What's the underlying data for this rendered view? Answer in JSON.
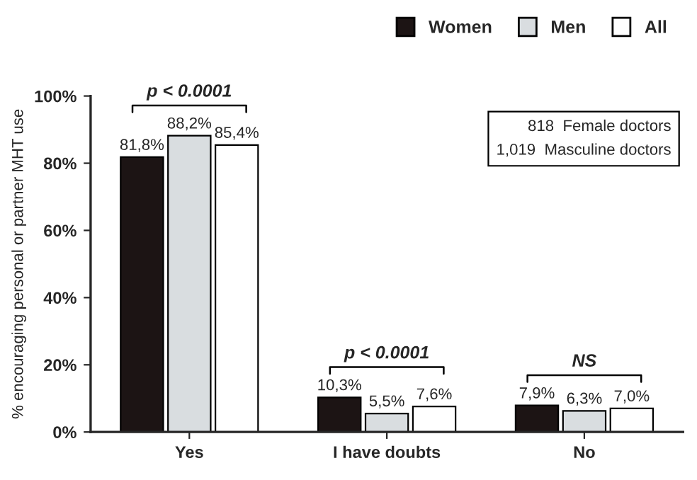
{
  "chart_data": {
    "type": "bar",
    "ylabel": "% encouraging personal or partner MHT use",
    "categories": [
      "Yes",
      "I have doubts",
      "No"
    ],
    "series": [
      {
        "name": "Women",
        "color": "#1c1414",
        "values": [
          81.8,
          10.3,
          7.9
        ],
        "value_labels": [
          "81,8%",
          "10,3%",
          "7,9%"
        ]
      },
      {
        "name": "Men",
        "color": "#d9dde0",
        "values": [
          88.2,
          5.5,
          6.3
        ],
        "value_labels": [
          "88,2%",
          "5,5%",
          "6,3%"
        ]
      },
      {
        "name": "All",
        "color": "#ffffff",
        "values": [
          85.4,
          7.6,
          7.0
        ],
        "value_labels": [
          "85,4%",
          "7,6%",
          "7,0%"
        ]
      }
    ],
    "ylim": [
      0,
      100
    ],
    "yticks": [
      {
        "value": 0,
        "label": "0%"
      },
      {
        "value": 20,
        "label": "20%"
      },
      {
        "value": 40,
        "label": "40%"
      },
      {
        "value": 60,
        "label": "60%"
      },
      {
        "value": 80,
        "label": "80%"
      },
      {
        "value": 100,
        "label": "100%"
      }
    ],
    "annotations": [
      "p < 0.0001",
      "p < 0.0001",
      "NS",
      "818  Female doctors\n1,019  Masculine doctors"
    ],
    "grid": false,
    "legend": "top right"
  }
}
